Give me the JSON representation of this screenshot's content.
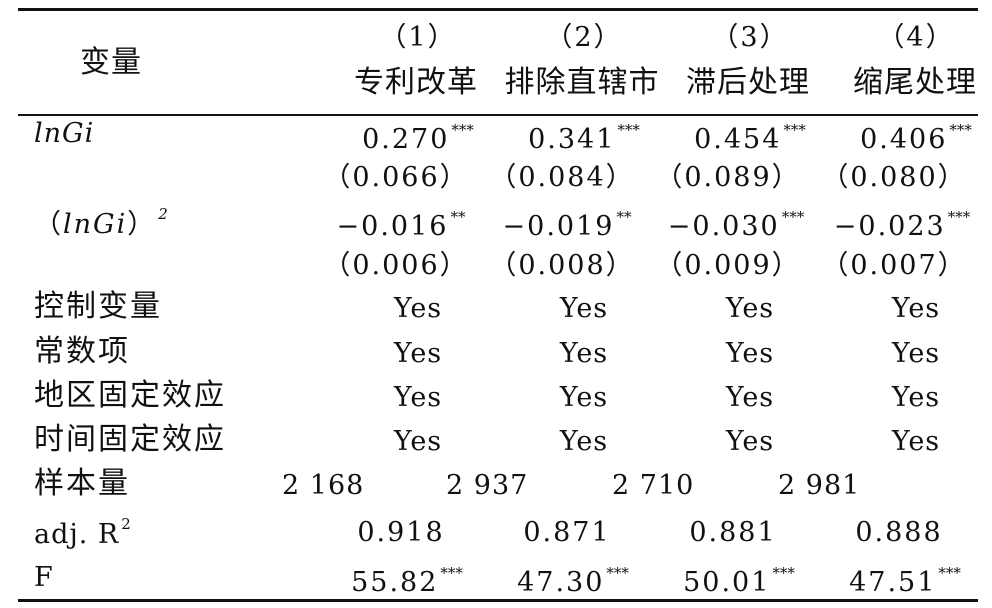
{
  "header": {
    "variable_label": "变量",
    "columns": [
      {
        "num": "（1）",
        "label": "专利改革"
      },
      {
        "num": "（2）",
        "label": "排除直辖市"
      },
      {
        "num": "（3）",
        "label": "滞后处理"
      },
      {
        "num": "（4）",
        "label": "缩尾处理"
      }
    ]
  },
  "rows": {
    "lngi": {
      "label": "lnGi",
      "coef": [
        {
          "value": "0.270",
          "stars": "***"
        },
        {
          "value": "0.341",
          "stars": "***"
        },
        {
          "value": "0.454",
          "stars": "***"
        },
        {
          "value": "0.406",
          "stars": "***"
        }
      ],
      "se": [
        "（0.066）",
        "（0.084）",
        "（0.089）",
        "（0.080）"
      ]
    },
    "lngi_sq": {
      "label_open": "（",
      "label_var": "lnGi",
      "label_close": "）",
      "label_sup": "2",
      "coef": [
        {
          "value": "−0.016",
          "stars": "**"
        },
        {
          "value": "−0.019",
          "stars": "**"
        },
        {
          "value": "−0.030",
          "stars": "***"
        },
        {
          "value": "−0.023",
          "stars": "***"
        }
      ],
      "se": [
        "（0.006）",
        "（0.008）",
        "（0.009）",
        "（0.007）"
      ]
    },
    "controls": {
      "label": "控制变量",
      "values": [
        "Yes",
        "Yes",
        "Yes",
        "Yes"
      ]
    },
    "constant": {
      "label": "常数项",
      "values": [
        "Yes",
        "Yes",
        "Yes",
        "Yes"
      ]
    },
    "region_fe": {
      "label": "地区固定效应",
      "values": [
        "Yes",
        "Yes",
        "Yes",
        "Yes"
      ]
    },
    "time_fe": {
      "label": "时间固定效应",
      "values": [
        "Yes",
        "Yes",
        "Yes",
        "Yes"
      ]
    },
    "sample": {
      "label": "样本量",
      "values": [
        "2 168",
        "2 937",
        "2 710",
        "2 981"
      ]
    },
    "adj_r2": {
      "label": "adj. R",
      "label_sup": "2",
      "values": [
        "0.918",
        "0.871",
        "0.881",
        "0.888"
      ]
    },
    "f_stat": {
      "label": "F",
      "values": [
        {
          "value": "55.82",
          "stars": "***"
        },
        {
          "value": "47.30",
          "stars": "***"
        },
        {
          "value": "50.01",
          "stars": "***"
        },
        {
          "value": "47.51",
          "stars": "***"
        }
      ]
    }
  }
}
